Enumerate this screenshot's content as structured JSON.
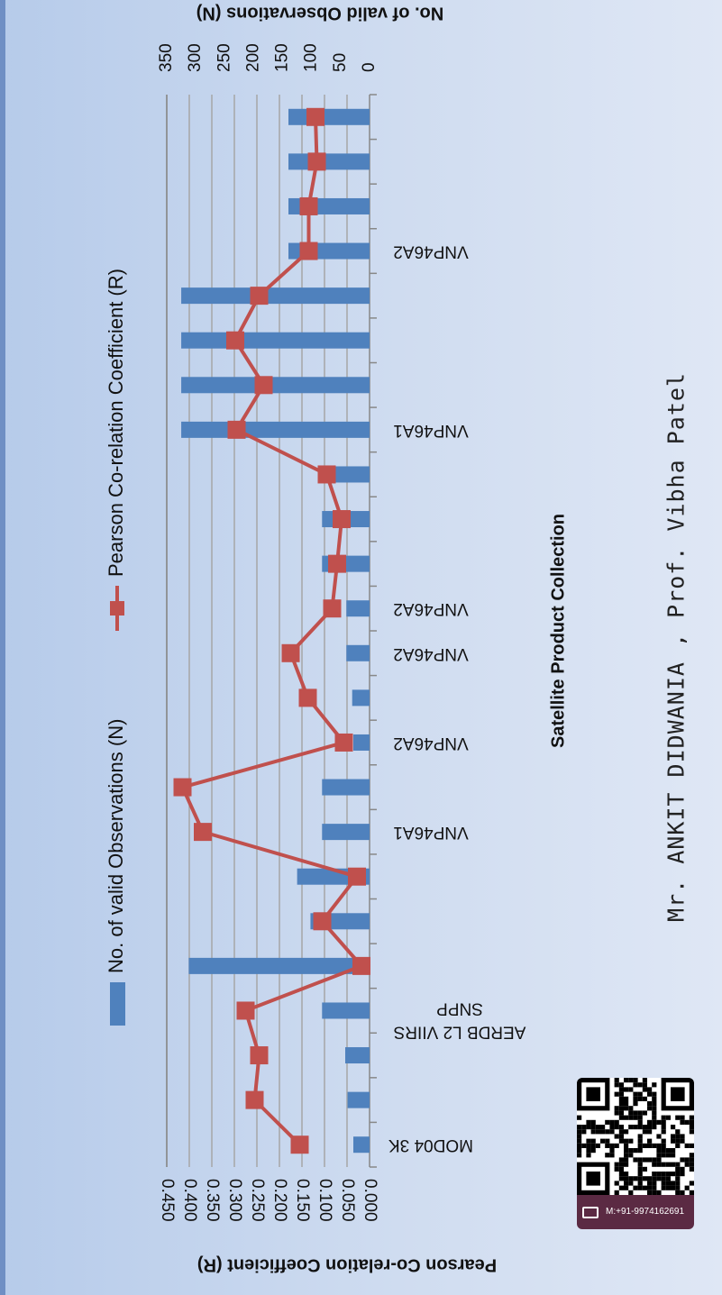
{
  "chart_data": {
    "type": "bar+line",
    "xlabel": "Satellite Product Collection",
    "y_left_label": "Pearson Co-relation Coefficient (R)",
    "y_right_label": "No.  of valid Observations (N)",
    "y_left_ticks": [
      "0.450",
      "0.400",
      "0.350",
      "0.300",
      "0.250",
      "0.200",
      "0.150",
      "0.100",
      "0.050",
      "0.000"
    ],
    "y_right_ticks": [
      "350",
      "300",
      "250",
      "200",
      "150",
      "100",
      "50",
      "0"
    ],
    "y_left_range": [
      0,
      0.45
    ],
    "y_right_range": [
      0,
      350
    ],
    "category_labels": [
      "MOD04 3K",
      "",
      "",
      "AERDB L2 VIIRS SNPP",
      "",
      "",
      "",
      "VNP46A1",
      "",
      "VNP46A2",
      "",
      "VNP46A2",
      "VNP46A2",
      "",
      "",
      "",
      "VNP46A1",
      "",
      "",
      "",
      "VNP46A2",
      "",
      "",
      ""
    ],
    "series": [
      {
        "name": "No.  of valid Observations (N)",
        "type": "bar",
        "values": [
          28,
          38,
          42,
          82,
          312,
          102,
          125,
          82,
          82,
          28,
          30,
          40,
          40,
          82,
          82,
          62,
          325,
          325,
          325,
          325,
          140,
          140,
          140,
          140
        ]
      },
      {
        "name": "Pearson Co-relation Coefficient (R)",
        "type": "line",
        "values": [
          0.155,
          0.255,
          0.245,
          0.275,
          0.018,
          0.105,
          0.028,
          0.37,
          0.415,
          0.057,
          0.137,
          0.175,
          0.083,
          0.072,
          0.062,
          0.095,
          0.295,
          0.235,
          0.298,
          0.245,
          0.135,
          0.135,
          0.117,
          0.12
        ]
      }
    ],
    "colors": {
      "bar": "#4f81bd",
      "line": "#c0504d",
      "grid": "#a6a6a6"
    }
  },
  "author_text": "Mr. ANKIT DIDWANIA ,  Prof. Vibha Patel",
  "contact": {
    "phone": "M:+91-9974162691",
    "icon": "phone-icon",
    "qr": "qr-code-icon"
  }
}
